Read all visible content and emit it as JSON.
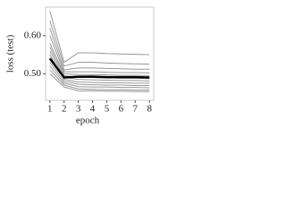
{
  "chart_data": {
    "type": "line",
    "xlabel": "epoch",
    "ylabel": "loss (test)",
    "x": [
      1,
      2,
      3,
      4,
      5,
      6,
      7,
      8
    ],
    "xlim": [
      0.7,
      8.3
    ],
    "xticks": [
      1,
      2,
      3,
      4,
      5,
      6,
      7,
      8
    ],
    "ylim": [
      0.43,
      0.675
    ],
    "yticks": [
      {
        "value": 0.5,
        "label": "0.50"
      },
      {
        "value": 0.6,
        "label": "0.60"
      }
    ],
    "series": [
      {
        "color": "#999999",
        "values": [
          0.665,
          0.53,
          0.555,
          0.555,
          0.553,
          0.552,
          0.551,
          0.55
        ]
      },
      {
        "color": "#999999",
        "values": [
          0.64,
          0.52,
          0.53,
          0.53,
          0.528,
          0.527,
          0.526,
          0.525
        ]
      },
      {
        "color": "#999999",
        "values": [
          0.62,
          0.51,
          0.515,
          0.515,
          0.514,
          0.513,
          0.512,
          0.512
        ]
      },
      {
        "color": "#999999",
        "values": [
          0.6,
          0.505,
          0.505,
          0.505,
          0.504,
          0.503,
          0.503,
          0.502
        ]
      },
      {
        "color": "#999999",
        "values": [
          0.58,
          0.5,
          0.498,
          0.497,
          0.497,
          0.496,
          0.496,
          0.495
        ]
      },
      {
        "color": "#999999",
        "values": [
          0.57,
          0.495,
          0.49,
          0.49,
          0.489,
          0.488,
          0.488,
          0.487
        ]
      },
      {
        "color": "#999999",
        "values": [
          0.56,
          0.49,
          0.485,
          0.484,
          0.483,
          0.482,
          0.482,
          0.481
        ]
      },
      {
        "color": "#999999",
        "values": [
          0.55,
          0.485,
          0.478,
          0.477,
          0.476,
          0.476,
          0.475,
          0.475
        ]
      },
      {
        "color": "#999999",
        "values": [
          0.53,
          0.48,
          0.472,
          0.471,
          0.47,
          0.47,
          0.469,
          0.469
        ]
      },
      {
        "color": "#999999",
        "values": [
          0.52,
          0.475,
          0.466,
          0.465,
          0.465,
          0.464,
          0.464,
          0.463
        ]
      },
      {
        "color": "#999999",
        "values": [
          0.51,
          0.47,
          0.46,
          0.459,
          0.458,
          0.458,
          0.457,
          0.457
        ]
      },
      {
        "color": "#999999",
        "values": [
          0.5,
          0.465,
          0.455,
          0.455,
          0.454,
          0.454,
          0.453,
          0.453
        ]
      },
      {
        "color": "#000000",
        "values": [
          0.54,
          0.49,
          0.492,
          0.492,
          0.491,
          0.491,
          0.491,
          0.49
        ]
      }
    ]
  }
}
